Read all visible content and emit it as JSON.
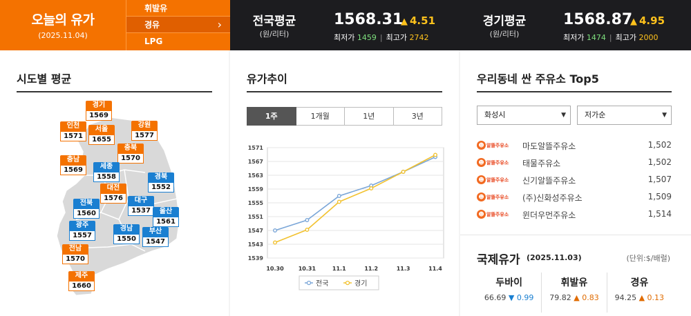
{
  "today": {
    "title": "오늘의 유가",
    "date": "(2025.11.04)"
  },
  "fuel_tabs": [
    {
      "label": "휘발유",
      "active": false
    },
    {
      "label": "경유",
      "active": true
    },
    {
      "label": "LPG",
      "active": false
    }
  ],
  "national": {
    "label": "전국평균",
    "unit": "(원/리터)",
    "price": "1568.31",
    "change": "4.51",
    "min_label": "최저가",
    "min": "1459",
    "max_label": "최고가",
    "max": "2742"
  },
  "gyeonggi": {
    "label": "경기평균",
    "unit": "(원/리터)",
    "price": "1568.87",
    "change": "4.95",
    "min_label": "최저가",
    "min": "1474",
    "max_label": "최고가",
    "max": "2000"
  },
  "region": {
    "title": "시도별 평균",
    "pins": [
      {
        "name": "경기",
        "value": "1569",
        "color": "orange"
      },
      {
        "name": "인천",
        "value": "1571",
        "color": "orange"
      },
      {
        "name": "서울",
        "value": "1655",
        "color": "orange"
      },
      {
        "name": "강원",
        "value": "1577",
        "color": "orange"
      },
      {
        "name": "충북",
        "value": "1570",
        "color": "orange"
      },
      {
        "name": "충남",
        "value": "1569",
        "color": "orange"
      },
      {
        "name": "세종",
        "value": "1558",
        "color": "blue"
      },
      {
        "name": "경북",
        "value": "1552",
        "color": "blue"
      },
      {
        "name": "대전",
        "value": "1576",
        "color": "orange"
      },
      {
        "name": "대구",
        "value": "1537",
        "color": "blue"
      },
      {
        "name": "전북",
        "value": "1560",
        "color": "blue"
      },
      {
        "name": "울산",
        "value": "1561",
        "color": "blue"
      },
      {
        "name": "광주",
        "value": "1557",
        "color": "blue"
      },
      {
        "name": "경남",
        "value": "1550",
        "color": "blue"
      },
      {
        "name": "부산",
        "value": "1547",
        "color": "blue"
      },
      {
        "name": "전남",
        "value": "1570",
        "color": "orange"
      },
      {
        "name": "제주",
        "value": "1660",
        "color": "orange"
      }
    ]
  },
  "trend": {
    "title": "유가추이",
    "tabs": [
      {
        "label": "1주",
        "active": true
      },
      {
        "label": "1개월",
        "active": false
      },
      {
        "label": "1년",
        "active": false
      },
      {
        "label": "3년",
        "active": false
      }
    ]
  },
  "chart_data": {
    "type": "line",
    "categories": [
      "10.30",
      "10.31",
      "11.1",
      "11.2",
      "11.3",
      "11.4"
    ],
    "yticks": [
      1539,
      1543,
      1547,
      1551,
      1555,
      1559,
      1563,
      1567,
      1571
    ],
    "ylim": [
      1539,
      1571
    ],
    "series": [
      {
        "name": "전국",
        "color": "#7aa6d8",
        "values": [
          1547,
          1550,
          1557,
          1560,
          1564,
          1568.3
        ]
      },
      {
        "name": "경기",
        "color": "#f2c230",
        "values": [
          1543.5,
          1547.2,
          1555.3,
          1559.2,
          1564,
          1568.9
        ]
      }
    ]
  },
  "top5": {
    "title": "우리동네 싼 주유소 Top5",
    "region_select": "화성시",
    "sort_select": "저가순",
    "stations": [
      {
        "brand": "알뜰주유소",
        "name": "마도알뜰주유소",
        "price": "1,502"
      },
      {
        "brand": "알뜰주유소",
        "name": "태물주유소",
        "price": "1,502"
      },
      {
        "brand": "알뜰주유소",
        "name": "신기알뜰주유소",
        "price": "1,507"
      },
      {
        "brand": "알뜰주유소",
        "name": "(주)신화성주유소",
        "price": "1,509"
      },
      {
        "brand": "알뜰주유소",
        "name": "윈더우먼주유소",
        "price": "1,514"
      }
    ]
  },
  "intl": {
    "title": "국제유가",
    "date": "(2025.11.03)",
    "unit": "(단위:$/배럴)",
    "items": [
      {
        "name": "두바이",
        "value": "66.69",
        "dir": "down",
        "change": "0.99"
      },
      {
        "name": "휘발유",
        "value": "79.82",
        "dir": "up",
        "change": "0.83"
      },
      {
        "name": "경유",
        "value": "94.25",
        "dir": "up",
        "change": "0.13"
      }
    ]
  }
}
